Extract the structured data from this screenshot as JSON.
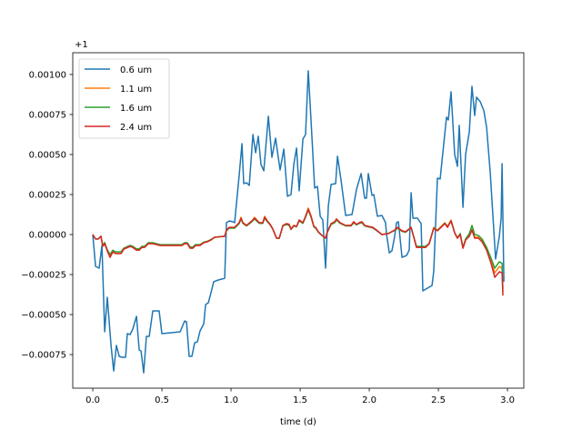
{
  "chart_data": {
    "type": "line",
    "title": "",
    "xlabel": "time (d)",
    "ylabel": "",
    "y_offset_text": "+1",
    "xlim": [
      -0.145,
      3.118
    ],
    "ylim": [
      -0.00096,
      0.001136
    ],
    "x_ticks": [
      0,
      0.5,
      1,
      1.5,
      2,
      2.5,
      3
    ],
    "x_tick_labels": [
      "0.0",
      "0.5",
      "1.0",
      "1.5",
      "2.0",
      "2.5",
      "3.0"
    ],
    "y_ticks": [
      -0.00075,
      -0.0005,
      -0.00025,
      0,
      0.00025,
      0.0005,
      0.00075,
      0.001
    ],
    "y_tick_labels": [
      "−0.00075",
      "−0.00050",
      "−0.00025",
      "0.00000",
      "0.00025",
      "0.00050",
      "0.00075",
      "0.00100"
    ],
    "grid": false,
    "legend_position": "top-left",
    "series": [
      {
        "name": "0.6 um",
        "color": "#1f77b4",
        "x": [
          0,
          0.02,
          0.046,
          0.066,
          0.086,
          0.105,
          0.132,
          0.151,
          0.171,
          0.191,
          0.211,
          0.237,
          0.25,
          0.27,
          0.289,
          0.316,
          0.336,
          0.349,
          0.368,
          0.388,
          0.408,
          0.434,
          0.48,
          0.5,
          0.632,
          0.664,
          0.678,
          0.697,
          0.717,
          0.737,
          0.757,
          0.776,
          0.803,
          0.816,
          0.836,
          0.855,
          0.875,
          0.908,
          0.954,
          0.967,
          0.987,
          1.013,
          1.026,
          1.059,
          1.079,
          1.092,
          1.112,
          1.132,
          1.158,
          1.178,
          1.197,
          1.217,
          1.237,
          1.27,
          1.296,
          1.322,
          1.355,
          1.382,
          1.408,
          1.434,
          1.454,
          1.474,
          1.493,
          1.52,
          1.539,
          1.559,
          1.586,
          1.605,
          1.625,
          1.645,
          1.664,
          1.684,
          1.704,
          1.724,
          1.757,
          1.77,
          1.796,
          1.829,
          1.875,
          1.908,
          1.941,
          1.967,
          1.98,
          1.993,
          2.02,
          2.033,
          2.059,
          2.092,
          2.118,
          2.125,
          2.145,
          2.164,
          2.184,
          2.197,
          2.211,
          2.237,
          2.27,
          2.289,
          2.303,
          2.316,
          2.349,
          2.375,
          2.388,
          2.454,
          2.467,
          2.493,
          2.513,
          2.539,
          2.559,
          2.572,
          2.592,
          2.618,
          2.638,
          2.651,
          2.678,
          2.697,
          2.724,
          2.743,
          2.763,
          2.776,
          2.803,
          2.829,
          2.849,
          2.875,
          2.914,
          2.941,
          2.954,
          2.961,
          2.974
        ],
        "y": [
          0,
          -0.000199,
          -0.00021,
          -6.8e-05,
          -0.000608,
          -0.000392,
          -0.000693,
          -0.000852,
          -0.000693,
          -0.000761,
          -0.000767,
          -0.000767,
          -0.000619,
          -0.000625,
          -0.000591,
          -0.000511,
          -0.000722,
          -0.000727,
          -0.000864,
          -0.000636,
          -0.000636,
          -0.000477,
          -0.000477,
          -0.000619,
          -0.000608,
          -0.00054,
          -0.000545,
          -0.000761,
          -0.000761,
          -0.000676,
          -0.00067,
          -0.000602,
          -0.000557,
          -0.000438,
          -0.000426,
          -0.000364,
          -0.000295,
          -0.000284,
          -0.000273,
          7.4e-05,
          8.5e-05,
          8e-05,
          7.4e-05,
          0.000369,
          0.000568,
          0.000318,
          0.000324,
          0.000307,
          0.000625,
          0.000511,
          0.000614,
          0.000438,
          0.000398,
          0.000739,
          0.000483,
          0.000602,
          0.000403,
          0.000534,
          0.000239,
          0.00025,
          0.000438,
          0.00054,
          0.000273,
          0.000597,
          0.000625,
          0.001023,
          0.000602,
          0.00029,
          0.000301,
          0.000114,
          9.1e-05,
          -0.00021,
          0.000182,
          0.000313,
          0.000318,
          0.000489,
          0.000341,
          0.000119,
          0.000125,
          0.000284,
          0.000381,
          0.000227,
          0.000227,
          0.000381,
          0.000244,
          0.00025,
          0.000114,
          0.000119,
          7.4e-05,
          0,
          -0.000114,
          -0.000102,
          -1.1e-05,
          7.4e-05,
          8e-05,
          -0.000142,
          -0.000131,
          -9.7e-05,
          0.000261,
          0.000102,
          0.000102,
          6.8e-05,
          -0.000352,
          -0.000318,
          -0.000227,
          0.000352,
          0.000347,
          0.000568,
          0.000733,
          0.000716,
          0.000892,
          0.0005,
          0.000426,
          0.000682,
          0.00017,
          0.0005,
          0.000642,
          0.000926,
          0.000744,
          0.000858,
          0.00083,
          0.000773,
          0.00067,
          0.000386,
          -0.000153,
          -1.1e-05,
          0.000102,
          0.000443,
          -0.000295
        ]
      },
      {
        "name": "1.1 um",
        "color": "#ff7f0e",
        "x": [
          0,
          0.02,
          0.039,
          0.059,
          0.072,
          0.086,
          0.105,
          0.125,
          0.145,
          0.164,
          0.204,
          0.224,
          0.27,
          0.289,
          0.316,
          0.336,
          0.355,
          0.375,
          0.401,
          0.434,
          0.487,
          0.645,
          0.664,
          0.684,
          0.704,
          0.724,
          0.743,
          0.776,
          0.803,
          0.829,
          0.855,
          0.882,
          0.954,
          0.967,
          0.987,
          1.026,
          1.059,
          1.072,
          1.086,
          1.112,
          1.151,
          1.171,
          1.204,
          1.23,
          1.243,
          1.263,
          1.283,
          1.303,
          1.329,
          1.349,
          1.375,
          1.401,
          1.421,
          1.434,
          1.454,
          1.474,
          1.493,
          1.52,
          1.539,
          1.559,
          1.579,
          1.599,
          1.612,
          1.632,
          1.658,
          1.684,
          1.697,
          1.724,
          1.75,
          1.763,
          1.789,
          1.829,
          1.868,
          1.888,
          1.908,
          1.928,
          1.947,
          1.967,
          1.993,
          2.026,
          2.053,
          2.092,
          2.138,
          2.184,
          2.204,
          2.237,
          2.263,
          2.303,
          2.342,
          2.408,
          2.434,
          2.467,
          2.493,
          2.52,
          2.546,
          2.566,
          2.592,
          2.618,
          2.638,
          2.658,
          2.678,
          2.697,
          2.724,
          2.743,
          2.763,
          2.789,
          2.816,
          2.849,
          2.882,
          2.908,
          2.941,
          2.961,
          2.967
        ],
        "y": [
          0,
          -2.8e-05,
          -2.8e-05,
          -1.1e-05,
          -7.4e-05,
          -5.7e-05,
          -0.000102,
          -0.000142,
          -0.000108,
          -0.000119,
          -0.000119,
          -9.1e-05,
          -7.4e-05,
          -8e-05,
          -9.7e-05,
          -9.7e-05,
          -8e-05,
          -8e-05,
          -5.7e-05,
          -5.7e-05,
          -6.8e-05,
          -6.8e-05,
          -5.7e-05,
          -5.7e-05,
          -8.5e-05,
          -8.5e-05,
          -6.8e-05,
          -6.8e-05,
          -5.1e-05,
          -4.5e-05,
          -3.4e-05,
          -1.7e-05,
          -1.1e-05,
          2.8e-05,
          4.5e-05,
          4.5e-05,
          7.4e-05,
          0.000108,
          7.4e-05,
          5.7e-05,
          8.5e-05,
          0.000108,
          7.4e-05,
          7.4e-05,
          0.000114,
          8.5e-05,
          6.3e-05,
          3.4e-05,
          -2.3e-05,
          -2.3e-05,
          5.7e-05,
          6.8e-05,
          6.3e-05,
          3.4e-05,
          5.7e-05,
          5.1e-05,
          9.1e-05,
          7.4e-05,
          0.000114,
          0.000165,
          0.000114,
          5.1e-05,
          4.5e-05,
          1.7e-05,
          -6e-06,
          -2.3e-05,
          1.7e-05,
          6.8e-05,
          8e-05,
          9.7e-05,
          7.4e-05,
          5.7e-05,
          5.7e-05,
          8e-05,
          6.3e-05,
          7.4e-05,
          8e-05,
          5.7e-05,
          5.1e-05,
          4.5e-05,
          2.8e-05,
          0,
          6e-06,
          2.8e-05,
          4.5e-05,
          2.3e-05,
          1.7e-05,
          4.5e-05,
          -8e-05,
          -8e-05,
          -5.7e-05,
          4.5e-05,
          2.8e-05,
          5.1e-05,
          7.4e-05,
          5.1e-05,
          9.1e-05,
          1.1e-05,
          -2.3e-05,
          0,
          -8.5e-05,
          -3.4e-05,
          -6e-06,
          3.4e-05,
          -1.7e-05,
          -1.7e-05,
          -4e-05,
          -9e-05,
          -0.000165,
          -0.00024,
          -0.0002,
          -0.00021,
          -0.00036
        ]
      },
      {
        "name": "1.6 um",
        "color": "#2ca02c",
        "x": [
          0,
          0.02,
          0.039,
          0.059,
          0.072,
          0.086,
          0.105,
          0.125,
          0.145,
          0.164,
          0.204,
          0.224,
          0.27,
          0.289,
          0.316,
          0.336,
          0.355,
          0.375,
          0.401,
          0.434,
          0.487,
          0.645,
          0.664,
          0.684,
          0.704,
          0.724,
          0.743,
          0.776,
          0.803,
          0.829,
          0.855,
          0.882,
          0.954,
          0.967,
          0.987,
          1.026,
          1.059,
          1.072,
          1.086,
          1.112,
          1.151,
          1.171,
          1.204,
          1.23,
          1.243,
          1.263,
          1.283,
          1.303,
          1.329,
          1.349,
          1.375,
          1.401,
          1.421,
          1.434,
          1.454,
          1.474,
          1.493,
          1.52,
          1.539,
          1.559,
          1.579,
          1.599,
          1.612,
          1.632,
          1.658,
          1.684,
          1.697,
          1.724,
          1.75,
          1.763,
          1.789,
          1.829,
          1.868,
          1.888,
          1.908,
          1.928,
          1.947,
          1.967,
          1.993,
          2.026,
          2.053,
          2.092,
          2.138,
          2.184,
          2.204,
          2.237,
          2.263,
          2.303,
          2.342,
          2.408,
          2.434,
          2.467,
          2.493,
          2.52,
          2.546,
          2.566,
          2.592,
          2.618,
          2.638,
          2.658,
          2.678,
          2.697,
          2.724,
          2.743,
          2.763,
          2.789,
          2.816,
          2.849,
          2.882,
          2.908,
          2.941,
          2.961,
          2.967
        ],
        "y": [
          0,
          -2.8e-05,
          -2.8e-05,
          -1.1e-05,
          -6.8e-05,
          -5e-05,
          -9.5e-05,
          -0.000125,
          -9.8e-05,
          -0.000108,
          -0.000108,
          -8.5e-05,
          -6.8e-05,
          -7.4e-05,
          -9e-05,
          -9e-05,
          -7.4e-05,
          -7.4e-05,
          -5.1e-05,
          -5.1e-05,
          -6.3e-05,
          -6.3e-05,
          -5.1e-05,
          -5.1e-05,
          -7.8e-05,
          -7.8e-05,
          -6.3e-05,
          -6.3e-05,
          -4.8e-05,
          -4.2e-05,
          -3.1e-05,
          -1.7e-05,
          -1.1e-05,
          2.3e-05,
          4e-05,
          4e-05,
          6.8e-05,
          9.7e-05,
          7e-05,
          5.4e-05,
          8e-05,
          9.7e-05,
          7e-05,
          7e-05,
          0.000102,
          8e-05,
          6e-05,
          3.1e-05,
          -2.3e-05,
          -2.3e-05,
          5.4e-05,
          6.3e-05,
          5.7e-05,
          3.1e-05,
          5.4e-05,
          4.8e-05,
          8.5e-05,
          7e-05,
          0.000108,
          0.000154,
          0.000108,
          4.8e-05,
          4e-05,
          1.4e-05,
          -6e-06,
          -2e-05,
          1.4e-05,
          6.3e-05,
          7.4e-05,
          9.1e-05,
          7e-05,
          5.4e-05,
          5.4e-05,
          7.4e-05,
          6e-05,
          7e-05,
          7.4e-05,
          5.4e-05,
          4.8e-05,
          4.2e-05,
          2.5e-05,
          0,
          6e-06,
          2.5e-05,
          4e-05,
          2e-05,
          1.4e-05,
          4.2e-05,
          -7.4e-05,
          -7.4e-05,
          -5.4e-05,
          4.2e-05,
          2.5e-05,
          4.8e-05,
          7e-05,
          4.8e-05,
          8.5e-05,
          1.1e-05,
          -2e-05,
          6e-06,
          -8e-05,
          -2.8e-05,
          6e-06,
          5.7e-05,
          0,
          -6e-06,
          -2.8e-05,
          -8e-05,
          -0.00015,
          -0.00021,
          -0.00017,
          -0.00018,
          -0.00034
        ]
      },
      {
        "name": "2.4 um",
        "color": "#d62728",
        "x": [
          0,
          0.02,
          0.039,
          0.059,
          0.072,
          0.086,
          0.105,
          0.125,
          0.145,
          0.164,
          0.204,
          0.224,
          0.27,
          0.289,
          0.316,
          0.336,
          0.355,
          0.375,
          0.401,
          0.434,
          0.487,
          0.645,
          0.664,
          0.684,
          0.704,
          0.724,
          0.743,
          0.776,
          0.803,
          0.829,
          0.855,
          0.882,
          0.954,
          0.967,
          0.987,
          1.026,
          1.059,
          1.072,
          1.086,
          1.112,
          1.151,
          1.171,
          1.204,
          1.23,
          1.243,
          1.263,
          1.283,
          1.303,
          1.329,
          1.349,
          1.375,
          1.401,
          1.421,
          1.434,
          1.454,
          1.474,
          1.493,
          1.52,
          1.539,
          1.559,
          1.579,
          1.599,
          1.612,
          1.632,
          1.658,
          1.684,
          1.697,
          1.724,
          1.75,
          1.763,
          1.789,
          1.829,
          1.868,
          1.888,
          1.908,
          1.928,
          1.947,
          1.967,
          1.993,
          2.026,
          2.053,
          2.092,
          2.138,
          2.184,
          2.204,
          2.237,
          2.263,
          2.303,
          2.342,
          2.408,
          2.434,
          2.467,
          2.493,
          2.52,
          2.546,
          2.566,
          2.592,
          2.618,
          2.638,
          2.658,
          2.678,
          2.697,
          2.724,
          2.743,
          2.763,
          2.789,
          2.816,
          2.849,
          2.882,
          2.908,
          2.941,
          2.961,
          2.967
        ],
        "y": [
          0,
          -2.8e-05,
          -2.8e-05,
          -1.1e-05,
          -7.4e-05,
          -5.7e-05,
          -0.000102,
          -0.000142,
          -0.000108,
          -0.000119,
          -0.000119,
          -9.1e-05,
          -7.4e-05,
          -8e-05,
          -9.7e-05,
          -9.7e-05,
          -8e-05,
          -8e-05,
          -5.7e-05,
          -5.7e-05,
          -6.8e-05,
          -6.8e-05,
          -5.7e-05,
          -5.7e-05,
          -8.5e-05,
          -8.5e-05,
          -6.8e-05,
          -6.8e-05,
          -5.1e-05,
          -4.5e-05,
          -3.4e-05,
          -1.7e-05,
          -1.1e-05,
          2.8e-05,
          4.5e-05,
          4.5e-05,
          7.4e-05,
          0.000102,
          7.4e-05,
          5.7e-05,
          8.5e-05,
          0.000102,
          7.4e-05,
          7.4e-05,
          0.000108,
          8.5e-05,
          6.3e-05,
          3.4e-05,
          -2.3e-05,
          -2.3e-05,
          5.7e-05,
          6.8e-05,
          6.3e-05,
          3.4e-05,
          5.7e-05,
          5.1e-05,
          9.1e-05,
          7.4e-05,
          0.000114,
          0.000159,
          0.000114,
          5.1e-05,
          4.5e-05,
          1.7e-05,
          -6e-06,
          -2.3e-05,
          1.7e-05,
          6.8e-05,
          8e-05,
          9.7e-05,
          7.4e-05,
          5.7e-05,
          5.7e-05,
          8e-05,
          6.3e-05,
          7.4e-05,
          8e-05,
          5.7e-05,
          5.1e-05,
          4.5e-05,
          2.8e-05,
          0,
          6e-06,
          2.8e-05,
          4.5e-05,
          2.3e-05,
          1.7e-05,
          4.5e-05,
          -8e-05,
          -8e-05,
          -5.7e-05,
          4e-05,
          2.3e-05,
          4.5e-05,
          6.8e-05,
          4.5e-05,
          8.5e-05,
          1.1e-05,
          -2.3e-05,
          0,
          -8.5e-05,
          -3.4e-05,
          -1.1e-05,
          2.8e-05,
          -2.3e-05,
          -2.3e-05,
          -4.5e-05,
          -9.7e-05,
          -0.000182,
          -0.000267,
          -0.000233,
          -0.000239,
          -0.000381
        ]
      }
    ]
  }
}
